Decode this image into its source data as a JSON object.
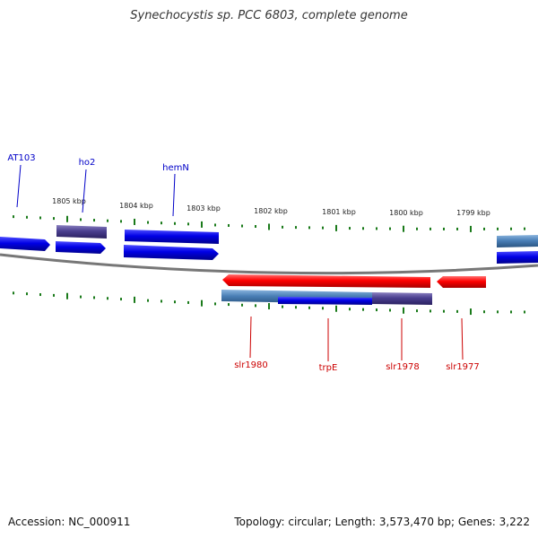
{
  "title": "Synechocystis sp. PCC 6803, complete genome",
  "footer": {
    "accession": "Accession: NC_000911",
    "summary": "Topology: circular; Length: 3,573,470 bp; Genes: 3,222"
  },
  "colors": {
    "forward_label": "#0000c8",
    "reverse_label": "#cc0000",
    "tick": "#1a7a1a",
    "backbone": "#777777"
  },
  "ticks": [
    "1805 kbp",
    "1804 kbp",
    "1803 kbp",
    "1802 kbp",
    "1801 kbp",
    "1800 kbp",
    "1799 kbp"
  ],
  "genes": [
    {
      "label": "AT103",
      "strand": "forward",
      "color": "blue"
    },
    {
      "label": "ho2",
      "strand": "forward",
      "color": "purple"
    },
    {
      "label": "hemN",
      "strand": "forward",
      "color": "blue"
    },
    {
      "label": "slr1980",
      "strand": "reverse",
      "color": "red"
    },
    {
      "label": "trpE",
      "strand": "reverse",
      "color": "red"
    },
    {
      "label": "slr1978",
      "strand": "reverse",
      "color": "red"
    },
    {
      "label": "slr1977",
      "strand": "reverse",
      "color": "red"
    }
  ]
}
